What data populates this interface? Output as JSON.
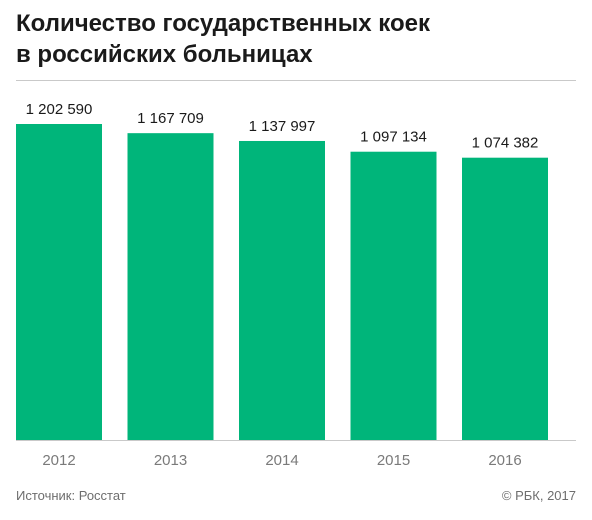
{
  "title_lines": [
    "Количество государственных коек",
    "в российских больницах"
  ],
  "footer": {
    "source": "Источник: Росстат",
    "copyright": "© РБК, 2017"
  },
  "colors": {
    "bar": "#00b57a",
    "axis": "#c9c9c9"
  },
  "chart_data": {
    "type": "bar",
    "categories": [
      "2012",
      "2013",
      "2014",
      "2015",
      "2016"
    ],
    "values": [
      1202590,
      1167709,
      1137997,
      1097134,
      1074382
    ],
    "value_labels": [
      "1 202 590",
      "1 167 709",
      "1 137 997",
      "1 097 134",
      "1 074 382"
    ],
    "ylim": [
      0,
      1202590
    ],
    "grid": false,
    "legend": "none"
  }
}
